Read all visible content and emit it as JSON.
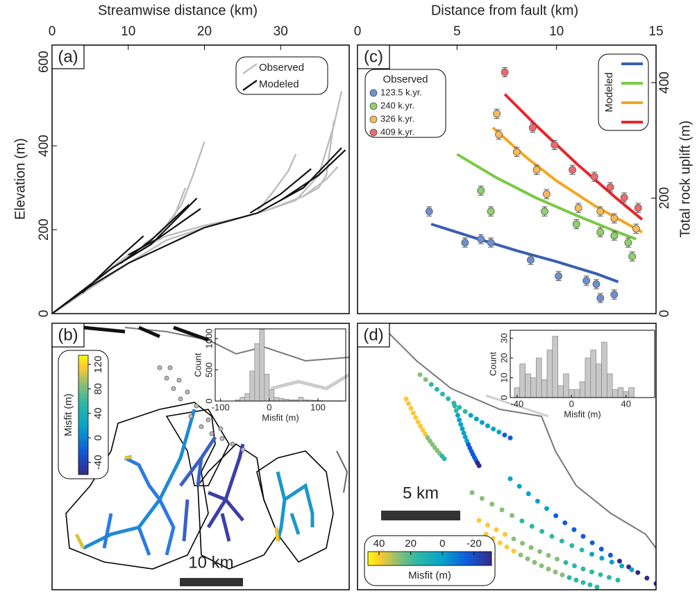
{
  "chart_data": [
    {
      "type": "line",
      "panel_label": "(a)",
      "xlabel": "Streamwise distance (km)",
      "ylabel": "Elevation (m)",
      "xlim": [
        0,
        39
      ],
      "ylim": [
        0,
        640
      ],
      "xticks": [
        0,
        10,
        20,
        30
      ],
      "yticks": [
        0,
        200,
        400,
        600
      ],
      "legend": "upper right",
      "series": [
        {
          "name": "Observed",
          "color": "#bdbdbd",
          "lines": [
            {
              "x": [
                0,
                5,
                10,
                15,
                20,
                25,
                28,
                32,
                35,
                37,
                38
              ],
              "values": [
                0,
                70,
                140,
                185,
                210,
                230,
                245,
                270,
                330,
                450,
                530
              ]
            },
            {
              "x": [
                0,
                10,
                15,
                20,
                25,
                28,
                33,
                36,
                37.5
              ],
              "values": [
                0,
                120,
                175,
                205,
                230,
                245,
                280,
                320,
                350
              ]
            },
            {
              "x": [
                13,
                15,
                17,
                18.5,
                20
              ],
              "values": [
                175,
                210,
                260,
                330,
                410
              ]
            },
            {
              "x": [
                12,
                14,
                16,
                17.5
              ],
              "values": [
                165,
                190,
                230,
                300
              ]
            },
            {
              "x": [
                27,
                29,
                31,
                32
              ],
              "values": [
                245,
                290,
                340,
                380
              ]
            },
            {
              "x": [
                33,
                35,
                36,
                37
              ],
              "values": [
                280,
                300,
                330,
                460
              ]
            }
          ]
        },
        {
          "name": "Modeled",
          "color": "#111111",
          "lines": [
            {
              "x": [
                0,
                5,
                10,
                20,
                27,
                33,
                38
              ],
              "values": [
                0,
                65,
                120,
                205,
                240,
                300,
                395
              ]
            },
            {
              "x": [
                0,
                8,
                13,
                19
              ],
              "values": [
                0,
                110,
                165,
                275
              ]
            },
            {
              "x": [
                4,
                8,
                12
              ],
              "values": [
                50,
                120,
                185
              ]
            },
            {
              "x": [
                9,
                13,
                18
              ],
              "values": [
                120,
                175,
                260
              ]
            },
            {
              "x": [
                26,
                30,
                34
              ],
              "values": [
                240,
                285,
                345
              ]
            },
            {
              "x": [
                10,
                14,
                19.5
              ],
              "values": [
                140,
                180,
                250
              ]
            },
            {
              "x": [
                30,
                35,
                38.5
              ],
              "values": [
                270,
                330,
                390
              ]
            }
          ]
        }
      ]
    },
    {
      "type": "map",
      "panel_label": "(b)",
      "scale_bar": "10 km",
      "colorbar": {
        "label": "Misfit (m)",
        "lim": [
          -60,
          135
        ],
        "ticks": [
          -40,
          0,
          40,
          80,
          120
        ],
        "orientation": "vertical"
      },
      "inset": {
        "type": "histogram",
        "xlabel": "Misfit (m)",
        "ylabel": "Count",
        "xlim": [
          -111,
          157
        ],
        "ylim": [
          0,
          1155
        ],
        "xticks": [
          -100,
          0,
          100
        ],
        "yticks": [
          0,
          500,
          1000
        ],
        "color": "#c8c8c8",
        "bins": [
          -70,
          -60,
          -50,
          -40,
          -30,
          -20,
          -10,
          0,
          10,
          20,
          30,
          40,
          50,
          60,
          70,
          80,
          90,
          100,
          110,
          120,
          130,
          140,
          150
        ],
        "counts": [
          20,
          60,
          120,
          480,
          920,
          1150,
          430,
          180,
          60,
          40,
          30,
          20,
          20,
          60,
          20,
          15,
          10,
          10,
          5,
          5,
          5,
          5
        ]
      }
    },
    {
      "type": "scatter",
      "panel_label": "(c)",
      "xlabel": "Distance from fault (km)",
      "ylabel": "Total rock uplift (m)",
      "xlim": [
        0,
        15
      ],
      "ylim": [
        0,
        465
      ],
      "xticks": [
        0,
        5,
        10,
        15
      ],
      "yticks": [
        0,
        200,
        400
      ],
      "legend_title": "Observed",
      "modeled_label": "Modeled",
      "series": [
        {
          "name": "123.5 k.yr.",
          "color": "#6f8fcf",
          "error": 8,
          "x": [
            3.6,
            5.4,
            6.2,
            6.7,
            8.7,
            10.1,
            11.5,
            12,
            12.2,
            12.9
          ],
          "values": [
            177,
            123,
            129,
            123,
            93,
            65,
            57,
            51,
            27,
            33
          ]
        },
        {
          "name": "240 k.yr.",
          "color": "#8fd16a",
          "error": 8,
          "x": [
            3.9,
            6.2,
            6.7,
            9.4,
            11,
            12.2,
            12.9,
            13.6,
            13.8
          ],
          "values": [
            322,
            213,
            177,
            177,
            155,
            141,
            135,
            123,
            99
          ]
        },
        {
          "name": "326 k.yr.",
          "color": "#f8b95a",
          "error": 8,
          "x": [
            7,
            7.1,
            8,
            9,
            9.5,
            11.1,
            12.2,
            12.9,
            14
          ],
          "values": [
            346,
            310,
            280,
            249,
            207,
            183,
            177,
            165,
            147
          ]
        },
        {
          "name": "409 k.yr.",
          "color": "#ec6b6b",
          "error": 8,
          "x": [
            7.4,
            8.8,
            9.9,
            10.8,
            11.9,
            12.7,
            13.4,
            14.1
          ],
          "values": [
            418,
            322,
            292,
            249,
            237,
            219,
            201,
            183
          ]
        }
      ],
      "model_series": [
        {
          "color": "#3a5fb0",
          "x": [
            3.7,
            6,
            8,
            10,
            12,
            13.1
          ],
          "values": [
            155,
            130,
            109,
            90,
            69,
            55
          ]
        },
        {
          "color": "#7ac943",
          "x": [
            5,
            7,
            9,
            11,
            13,
            14
          ],
          "values": [
            276,
            235,
            200,
            170,
            142,
            129
          ]
        },
        {
          "color": "#f5a623",
          "x": [
            6.8,
            8.5,
            10,
            12,
            14.3
          ],
          "values": [
            322,
            270,
            230,
            185,
            141
          ]
        },
        {
          "color": "#e8262b",
          "x": [
            7.4,
            9,
            11,
            13,
            14.3
          ],
          "values": [
            380,
            325,
            260,
            200,
            163
          ]
        }
      ]
    },
    {
      "type": "map",
      "panel_label": "(d)",
      "scale_bar": "5 km",
      "colorbar": {
        "label": "Misfit (m)",
        "lim": [
          47,
          -31
        ],
        "ticks": [
          40,
          20,
          0,
          -20
        ],
        "orientation": "horizontal"
      },
      "inset": {
        "type": "histogram",
        "xlabel": "Misfit (m)",
        "ylabel": "Count",
        "xlim": [
          -45,
          61
        ],
        "ylim": [
          0,
          34
        ],
        "xticks": [
          -40,
          0,
          40
        ],
        "yticks": [
          0,
          10,
          20,
          30
        ],
        "color": "#c8c8c8",
        "bins": [
          -42,
          -38,
          -34,
          -30,
          -26,
          -22,
          -18,
          -14,
          -10,
          -6,
          -2,
          2,
          6,
          10,
          14,
          18,
          22,
          26,
          30,
          34,
          38,
          42,
          46
        ],
        "counts": [
          5,
          17,
          12,
          10,
          20,
          9,
          24,
          31,
          6,
          12,
          4,
          4,
          8,
          20,
          24,
          17,
          28,
          12,
          4,
          5,
          3,
          5
        ]
      }
    }
  ]
}
